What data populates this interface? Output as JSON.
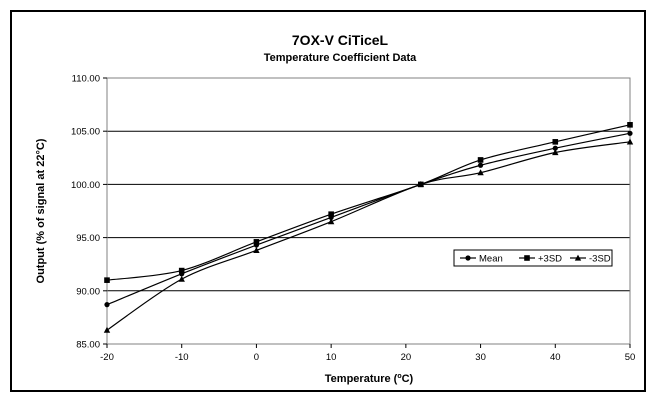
{
  "chart_data": {
    "type": "line",
    "title": "7OX-V CiTiceL",
    "subtitle": "Temperature Coefficient Data",
    "xlabel_main": "Temperature (",
    "xlabel_sup": "o",
    "xlabel_end": "C)",
    "ylabel": "Output (% of signal at 22°C)",
    "x": [
      -20,
      -10,
      0,
      10,
      22,
      30,
      40,
      50
    ],
    "x_ticks": [
      -20,
      -10,
      0,
      10,
      20,
      30,
      40,
      50
    ],
    "y_ticks": [
      "85.00",
      "90.00",
      "95.00",
      "100.00",
      "105.00",
      "110.00"
    ],
    "xlim": [
      -20,
      50
    ],
    "ylim": [
      85,
      110
    ],
    "grid": "horizontal",
    "legend_position": "right-middle",
    "series": [
      {
        "name": "Mean",
        "marker": "circle",
        "values": [
          88.7,
          91.6,
          94.3,
          96.9,
          100.0,
          101.8,
          103.4,
          104.8
        ]
      },
      {
        "name": "+3SD",
        "marker": "square",
        "values": [
          91.0,
          91.9,
          94.6,
          97.2,
          100.0,
          102.3,
          104.0,
          105.6
        ]
      },
      {
        "name": "-3SD",
        "marker": "triangle",
        "values": [
          86.3,
          91.1,
          93.8,
          96.5,
          100.0,
          101.1,
          103.0,
          104.0
        ]
      }
    ]
  }
}
